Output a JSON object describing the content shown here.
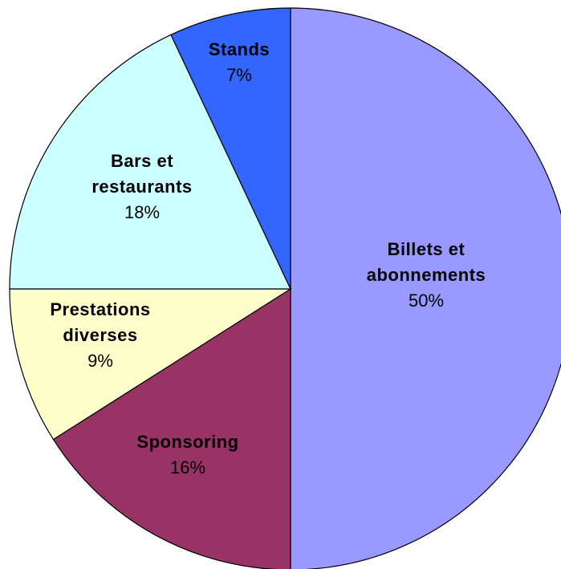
{
  "chart_data": {
    "type": "pie",
    "title": "",
    "slices": [
      {
        "label_lines": [
          "Billets et",
          "abonnements"
        ],
        "percent_label": "50%",
        "value": 50,
        "color": "#9999ff"
      },
      {
        "label_lines": [
          "Sponsoring"
        ],
        "percent_label": "16%",
        "value": 16,
        "color": "#993366"
      },
      {
        "label_lines": [
          "Prestations",
          "diverses"
        ],
        "percent_label": "9%",
        "value": 9,
        "color": "#ffffcc"
      },
      {
        "label_lines": [
          "Bars et",
          "restaurants"
        ],
        "percent_label": "18%",
        "value": 18,
        "color": "#ccffff"
      },
      {
        "label_lines": [
          "Stands"
        ],
        "percent_label": "7%",
        "value": 7,
        "color": "#3366ff"
      }
    ],
    "start_direction": "12 o'clock",
    "direction": "clockwise",
    "legend": "none",
    "outline_color": "#000000"
  }
}
